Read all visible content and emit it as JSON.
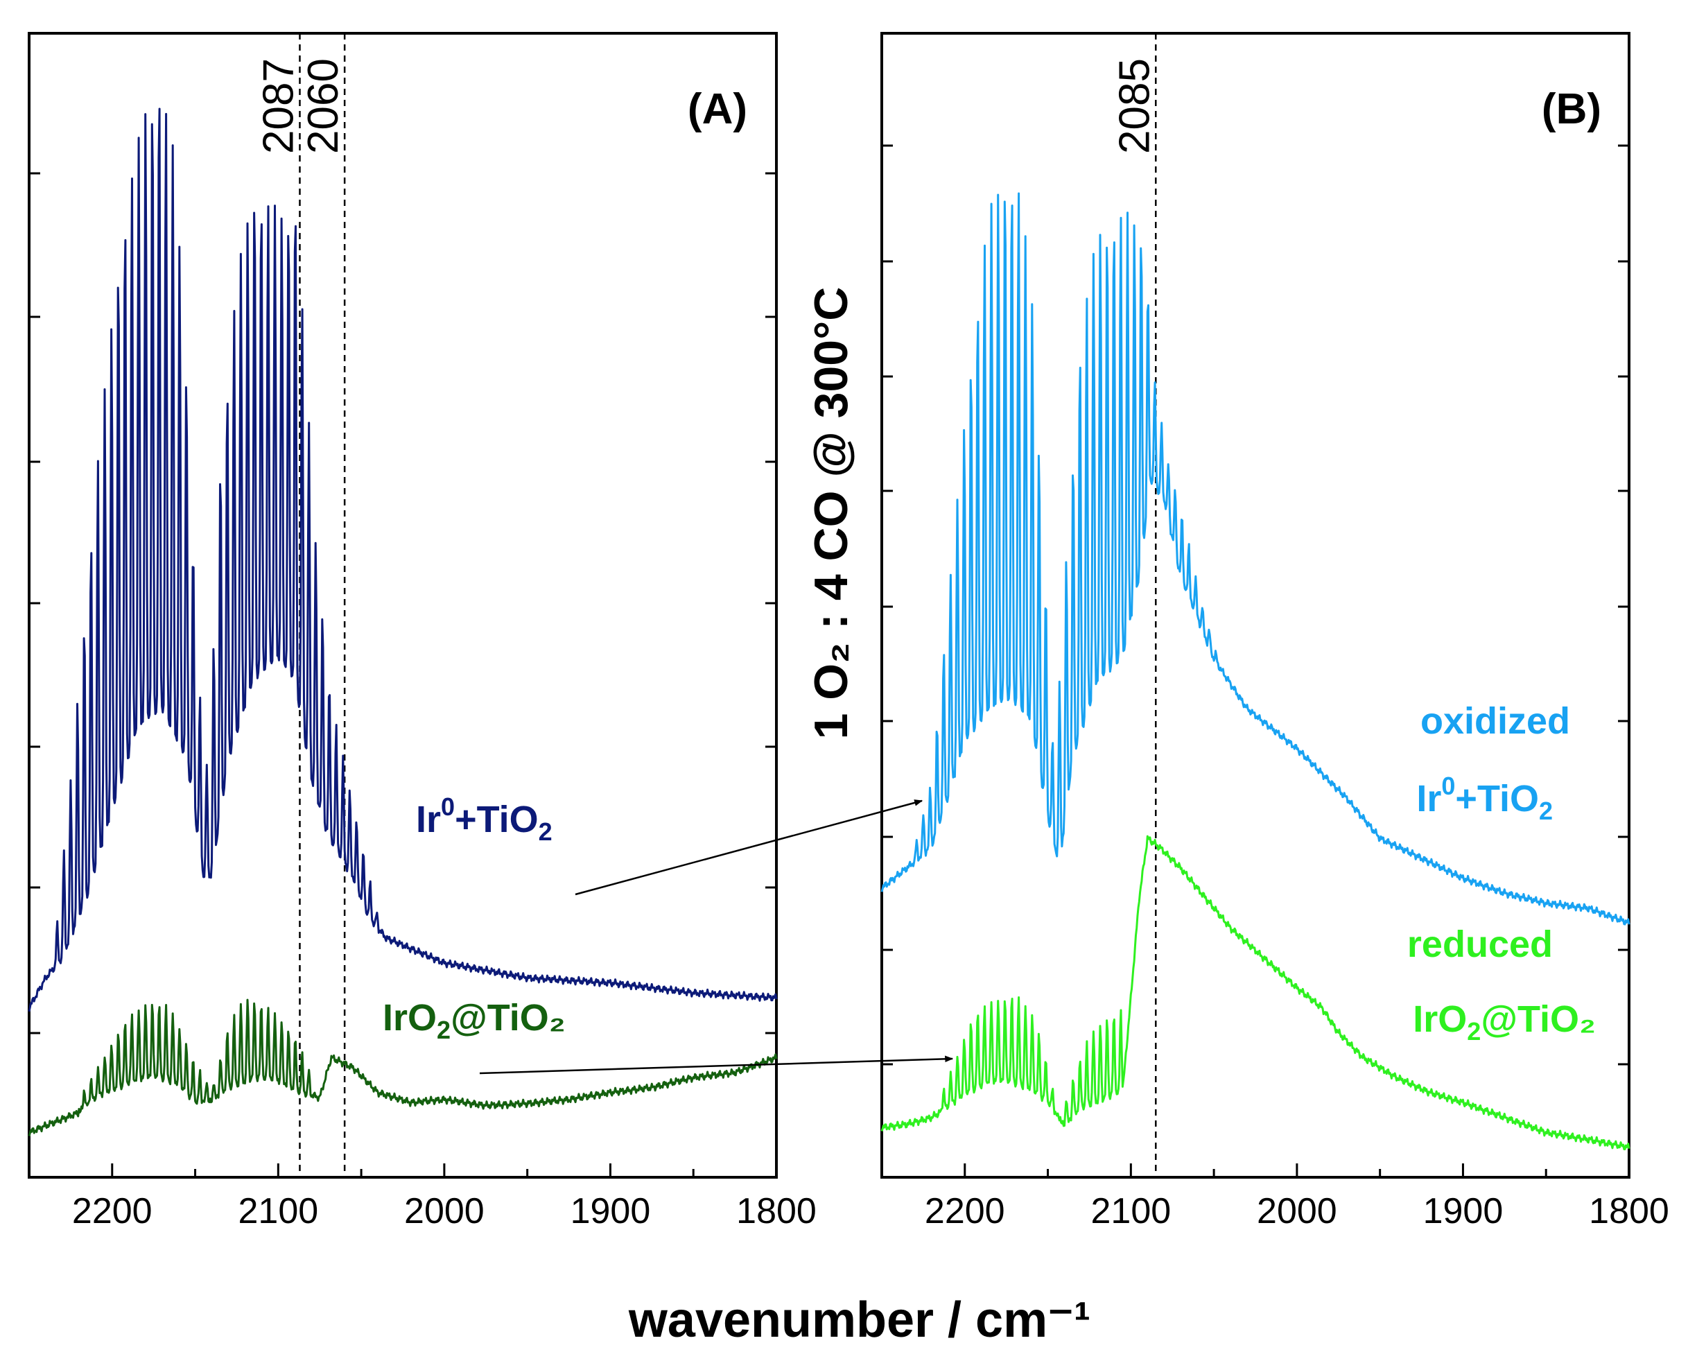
{
  "chart_data": {
    "type": "line",
    "xlabel": "wavenumber / cm⁻¹",
    "ylabel": "1 O₂ : 4 CO @ 300°C",
    "xlim": [
      2250,
      1800
    ],
    "x_ticks": [
      2200,
      2100,
      2000,
      1900,
      1800
    ],
    "x_tick_labels": [
      "2200",
      "2100",
      "2000",
      "1900",
      "1800"
    ],
    "panels": [
      {
        "id": "A",
        "label": "(A)",
        "markers": [
          {
            "x": 2087,
            "label": "2087"
          },
          {
            "x": 2060,
            "label": "2060"
          }
        ],
        "series": [
          {
            "name": "Ir0+TiO2",
            "label_main": "Ir",
            "label_sup": "0",
            "label_mid": "+TiO",
            "label_sub": "2",
            "label_tail": "",
            "color": "#0c1a78",
            "baseline": [
              [
                2250,
                0.17
              ],
              [
                2240,
                0.2
              ],
              [
                2230,
                0.22
              ],
              [
                2215,
                0.28
              ],
              [
                2200,
                0.37
              ],
              [
                2185,
                0.45
              ],
              [
                2170,
                0.47
              ],
              [
                2155,
                0.42
              ],
              [
                2145,
                0.3
              ],
              [
                2140,
                0.3
              ],
              [
                2130,
                0.42
              ],
              [
                2115,
                0.5
              ],
              [
                2100,
                0.52
              ],
              [
                2090,
                0.5
              ],
              [
                2080,
                0.4
              ],
              [
                2070,
                0.34
              ],
              [
                2055,
                0.3
              ],
              [
                2045,
                0.26
              ],
              [
                2035,
                0.24
              ],
              [
                2000,
                0.215
              ],
              [
                1950,
                0.2
              ],
              [
                1900,
                0.195
              ],
              [
                1850,
                0.185
              ],
              [
                1800,
                0.18
              ]
            ],
            "peak_envelope": [
              [
                2235,
                0.22
              ],
              [
                2225,
                0.4
              ],
              [
                2210,
                0.7
              ],
              [
                2195,
                0.95
              ],
              [
                2180,
                1.08
              ],
              [
                2172,
                1.12
              ],
              [
                2162,
                1.02
              ],
              [
                2155,
                0.8
              ],
              [
                2148,
                0.5
              ],
              [
                2142,
                0.4
              ],
              [
                2135,
                0.72
              ],
              [
                2125,
                0.9
              ],
              [
                2115,
                1.0
              ],
              [
                2105,
                0.98
              ],
              [
                2095,
                0.97
              ],
              [
                2090,
                1.0
              ],
              [
                2085,
                0.86
              ],
              [
                2078,
                0.65
              ],
              [
                2068,
                0.48
              ],
              [
                2058,
                0.4
              ],
              [
                2048,
                0.32
              ],
              [
                2040,
                0.26
              ]
            ]
          },
          {
            "name": "IrO2@TiO2",
            "label_main": "IrO",
            "label_sup": "",
            "label_mid": "",
            "label_sub": "2",
            "label_tail": "@TiO₂",
            "color": "#14600f",
            "baseline": [
              [
                2250,
                0.045
              ],
              [
                2235,
                0.055
              ],
              [
                2220,
                0.065
              ],
              [
                2205,
                0.085
              ],
              [
                2190,
                0.095
              ],
              [
                2175,
                0.1
              ],
              [
                2160,
                0.095
              ],
              [
                2150,
                0.075
              ],
              [
                2140,
                0.075
              ],
              [
                2130,
                0.09
              ],
              [
                2115,
                0.1
              ],
              [
                2100,
                0.095
              ],
              [
                2085,
                0.085
              ],
              [
                2075,
                0.08
              ],
              [
                2068,
                0.12
              ],
              [
                2055,
                0.11
              ],
              [
                2040,
                0.085
              ],
              [
                2020,
                0.075
              ],
              [
                2000,
                0.078
              ],
              [
                1975,
                0.072
              ],
              [
                1950,
                0.074
              ],
              [
                1925,
                0.078
              ],
              [
                1900,
                0.085
              ],
              [
                1875,
                0.09
              ],
              [
                1850,
                0.1
              ],
              [
                1825,
                0.105
              ],
              [
                1800,
                0.12
              ]
            ],
            "peak_envelope": [
              [
                2220,
                0.08
              ],
              [
                2205,
                0.12
              ],
              [
                2190,
                0.16
              ],
              [
                2178,
                0.18
              ],
              [
                2165,
                0.17
              ],
              [
                2152,
                0.12
              ],
              [
                2140,
                0.09
              ],
              [
                2130,
                0.15
              ],
              [
                2120,
                0.18
              ],
              [
                2110,
                0.175
              ],
              [
                2100,
                0.165
              ],
              [
                2090,
                0.14
              ],
              [
                2080,
                0.1
              ]
            ]
          }
        ]
      },
      {
        "id": "B",
        "label": "(B)",
        "markers": [
          {
            "x": 2085,
            "label": "2085"
          }
        ],
        "series": [
          {
            "name": "oxidized Ir0+TiO2",
            "label_line1": "oxidized",
            "label_main": "Ir",
            "label_sup": "0",
            "label_mid": "+TiO",
            "label_sub": "2",
            "label_tail": "",
            "color": "#18a2f2",
            "baseline": [
              [
                2250,
                0.29
              ],
              [
                2235,
                0.31
              ],
              [
                2220,
                0.33
              ],
              [
                2210,
                0.38
              ],
              [
                2200,
                0.44
              ],
              [
                2185,
                0.47
              ],
              [
                2172,
                0.48
              ],
              [
                2160,
                0.46
              ],
              [
                2150,
                0.36
              ],
              [
                2143,
                0.31
              ],
              [
                2135,
                0.42
              ],
              [
                2120,
                0.5
              ],
              [
                2105,
                0.52
              ],
              [
                2095,
                0.6
              ],
              [
                2088,
                0.7
              ],
              [
                2080,
                0.68
              ],
              [
                2070,
                0.6
              ],
              [
                2060,
                0.56
              ],
              [
                2050,
                0.52
              ],
              [
                2030,
                0.47
              ],
              [
                2000,
                0.43
              ],
              [
                1970,
                0.38
              ],
              [
                1950,
                0.34
              ],
              [
                1925,
                0.32
              ],
              [
                1900,
                0.3
              ],
              [
                1875,
                0.285
              ],
              [
                1850,
                0.275
              ],
              [
                1825,
                0.27
              ],
              [
                1800,
                0.255
              ]
            ],
            "peak_envelope": [
              [
                2230,
                0.33
              ],
              [
                2220,
                0.4
              ],
              [
                2210,
                0.58
              ],
              [
                2198,
                0.8
              ],
              [
                2186,
                0.97
              ],
              [
                2175,
                1.02
              ],
              [
                2168,
                1.0
              ],
              [
                2160,
                0.9
              ],
              [
                2152,
                0.62
              ],
              [
                2146,
                0.4
              ],
              [
                2140,
                0.6
              ],
              [
                2130,
                0.85
              ],
              [
                2120,
                0.95
              ],
              [
                2110,
                0.97
              ],
              [
                2100,
                0.97
              ],
              [
                2092,
                0.95
              ],
              [
                2086,
                0.8
              ],
              [
                2078,
                0.72
              ],
              [
                2068,
                0.66
              ],
              [
                2058,
                0.58
              ],
              [
                2048,
                0.52
              ]
            ]
          },
          {
            "name": "reduced IrO2@TiO2",
            "label_line1": "reduced",
            "label_main": "IrO",
            "label_sup": "",
            "label_mid": "",
            "label_sub": "2",
            "label_tail": "@TiO₂",
            "color": "#2ef01f",
            "baseline": [
              [
                2250,
                0.05
              ],
              [
                2235,
                0.053
              ],
              [
                2220,
                0.06
              ],
              [
                2210,
                0.07
              ],
              [
                2200,
                0.085
              ],
              [
                2185,
                0.095
              ],
              [
                2175,
                0.095
              ],
              [
                2160,
                0.09
              ],
              [
                2150,
                0.075
              ],
              [
                2140,
                0.05
              ],
              [
                2130,
                0.07
              ],
              [
                2115,
                0.08
              ],
              [
                2105,
                0.085
              ],
              [
                2100,
                0.18
              ],
              [
                2095,
                0.28
              ],
              [
                2090,
                0.34
              ],
              [
                2082,
                0.33
              ],
              [
                2070,
                0.31
              ],
              [
                2055,
                0.28
              ],
              [
                2040,
                0.25
              ],
              [
                2020,
                0.22
              ],
              [
                2000,
                0.19
              ],
              [
                1985,
                0.17
              ],
              [
                1975,
                0.145
              ],
              [
                1960,
                0.12
              ],
              [
                1940,
                0.1
              ],
              [
                1920,
                0.085
              ],
              [
                1900,
                0.075
              ],
              [
                1875,
                0.06
              ],
              [
                1850,
                0.045
              ],
              [
                1825,
                0.038
              ],
              [
                1800,
                0.03
              ]
            ],
            "peak_envelope": [
              [
                2215,
                0.08
              ],
              [
                2205,
                0.12
              ],
              [
                2195,
                0.16
              ],
              [
                2183,
                0.18
              ],
              [
                2170,
                0.185
              ],
              [
                2158,
                0.16
              ],
              [
                2150,
                0.11
              ],
              [
                2143,
                0.06
              ],
              [
                2135,
                0.1
              ],
              [
                2125,
                0.14
              ],
              [
                2115,
                0.16
              ],
              [
                2105,
                0.17
              ]
            ]
          }
        ]
      }
    ]
  }
}
